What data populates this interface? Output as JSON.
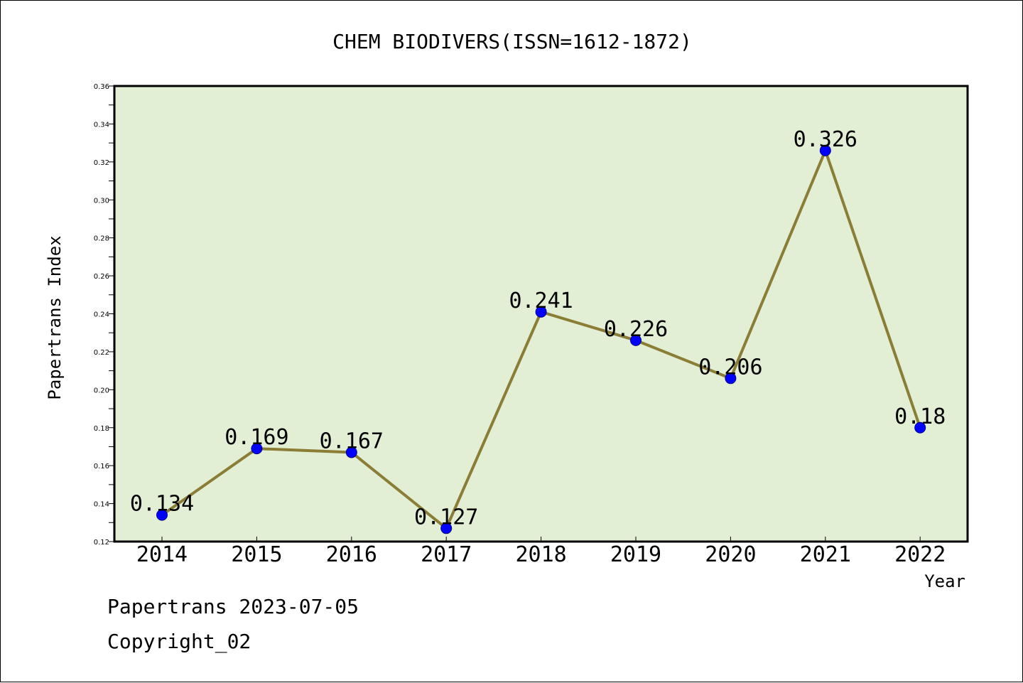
{
  "chart_data": {
    "type": "line",
    "title": "CHEM BIODIVERS(ISSN=1612-1872)",
    "xlabel": "Year",
    "ylabel": "Papertrans Index",
    "categories": [
      "2014",
      "2015",
      "2016",
      "2017",
      "2018",
      "2019",
      "2020",
      "2021",
      "2022"
    ],
    "values": [
      0.134,
      0.169,
      0.167,
      0.127,
      0.241,
      0.226,
      0.206,
      0.326,
      0.18
    ],
    "data_labels": [
      "0.134",
      "0.169",
      "0.167",
      "0.127",
      "0.241",
      "0.226",
      "0.206",
      "0.326",
      "0.18"
    ],
    "ylim": [
      0.12,
      0.36
    ],
    "y_ticks": [
      "0.12",
      "0.14",
      "0.16",
      "0.18",
      "0.20",
      "0.22",
      "0.24",
      "0.26",
      "0.28",
      "0.30",
      "0.32",
      "0.34",
      "0.36"
    ],
    "grid": false,
    "legend": "none",
    "colors": {
      "plot_background": "#e2efd5",
      "line": "#8b7d35",
      "marker": "#0000ff"
    }
  },
  "footer": {
    "line1": "Papertrans 2023-07-05",
    "line2": "Copyright_02"
  }
}
